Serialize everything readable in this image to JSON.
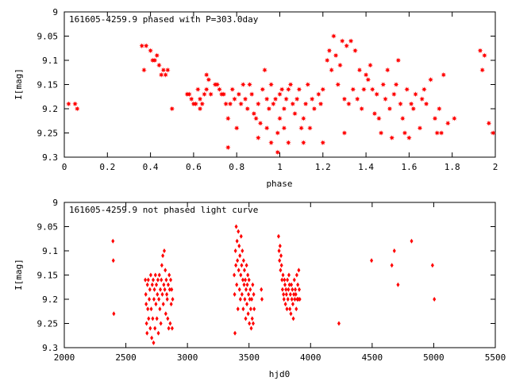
{
  "chart_data": [
    {
      "type": "scatter",
      "title": "161605-4259.9 phased with P=303.0day",
      "xlabel": "phase",
      "ylabel": "I[mag]",
      "xlim": [
        0,
        2
      ],
      "ylim": [
        9.3,
        9
      ],
      "y_axis_inverted": true,
      "grid": false,
      "color": "#ff0000",
      "marker": "filled square/star",
      "x_ticks": [
        "0",
        "0.2",
        "0.4",
        "0.6",
        "0.8",
        "1",
        "1.2",
        "1.4",
        "1.6",
        "1.8",
        "2"
      ],
      "y_ticks": [
        "9",
        "9.05",
        "9.1",
        "9.15",
        "9.2",
        "9.25",
        "9.3"
      ],
      "points": [
        [
          0.02,
          9.19
        ],
        [
          0.05,
          9.19
        ],
        [
          0.06,
          9.2
        ],
        [
          0.36,
          9.07
        ],
        [
          0.37,
          9.12
        ],
        [
          0.38,
          9.07
        ],
        [
          0.4,
          9.08
        ],
        [
          0.41,
          9.1
        ],
        [
          0.42,
          9.1
        ],
        [
          0.43,
          9.09
        ],
        [
          0.44,
          9.11
        ],
        [
          0.45,
          9.13
        ],
        [
          0.46,
          9.12
        ],
        [
          0.47,
          9.13
        ],
        [
          0.48,
          9.12
        ],
        [
          0.5,
          9.2
        ],
        [
          0.57,
          9.17
        ],
        [
          0.58,
          9.17
        ],
        [
          0.59,
          9.18
        ],
        [
          0.6,
          9.19
        ],
        [
          0.61,
          9.19
        ],
        [
          0.62,
          9.16
        ],
        [
          0.63,
          9.18
        ],
        [
          0.63,
          9.2
        ],
        [
          0.64,
          9.19
        ],
        [
          0.65,
          9.17
        ],
        [
          0.66,
          9.13
        ],
        [
          0.66,
          9.16
        ],
        [
          0.67,
          9.14
        ],
        [
          0.68,
          9.17
        ],
        [
          0.7,
          9.15
        ],
        [
          0.71,
          9.15
        ],
        [
          0.72,
          9.16
        ],
        [
          0.73,
          9.17
        ],
        [
          0.74,
          9.17
        ],
        [
          0.75,
          9.19
        ],
        [
          0.76,
          9.22
        ],
        [
          0.76,
          9.28
        ],
        [
          0.77,
          9.19
        ],
        [
          0.78,
          9.16
        ],
        [
          0.79,
          9.18
        ],
        [
          0.8,
          9.24
        ],
        [
          0.81,
          9.17
        ],
        [
          0.82,
          9.19
        ],
        [
          0.83,
          9.15
        ],
        [
          0.84,
          9.18
        ],
        [
          0.85,
          9.2
        ],
        [
          0.86,
          9.15
        ],
        [
          0.87,
          9.17
        ],
        [
          0.88,
          9.21
        ],
        [
          0.89,
          9.22
        ],
        [
          0.9,
          9.19
        ],
        [
          0.9,
          9.26
        ],
        [
          0.91,
          9.23
        ],
        [
          0.92,
          9.16
        ],
        [
          0.93,
          9.12
        ],
        [
          0.94,
          9.18
        ],
        [
          0.94,
          9.24
        ],
        [
          0.95,
          9.2
        ],
        [
          0.96,
          9.15
        ],
        [
          0.96,
          9.27
        ],
        [
          0.97,
          9.19
        ],
        [
          0.98,
          9.18
        ],
        [
          0.99,
          9.25
        ],
        [
          0.99,
          9.29
        ],
        [
          1.0,
          9.17
        ],
        [
          1.0,
          9.22
        ],
        [
          1.01,
          9.16
        ],
        [
          1.02,
          9.2
        ],
        [
          1.02,
          9.24
        ],
        [
          1.03,
          9.18
        ],
        [
          1.04,
          9.16
        ],
        [
          1.04,
          9.27
        ],
        [
          1.05,
          9.15
        ],
        [
          1.06,
          9.19
        ],
        [
          1.07,
          9.21
        ],
        [
          1.08,
          9.18
        ],
        [
          1.09,
          9.16
        ],
        [
          1.1,
          9.24
        ],
        [
          1.11,
          9.22
        ],
        [
          1.11,
          9.27
        ],
        [
          1.12,
          9.19
        ],
        [
          1.13,
          9.15
        ],
        [
          1.14,
          9.24
        ],
        [
          1.15,
          9.18
        ],
        [
          1.16,
          9.2
        ],
        [
          1.18,
          9.17
        ],
        [
          1.19,
          9.19
        ],
        [
          1.2,
          9.16
        ],
        [
          1.2,
          9.27
        ],
        [
          1.22,
          9.1
        ],
        [
          1.23,
          9.08
        ],
        [
          1.24,
          9.12
        ],
        [
          1.25,
          9.05
        ],
        [
          1.26,
          9.09
        ],
        [
          1.27,
          9.15
        ],
        [
          1.28,
          9.11
        ],
        [
          1.29,
          9.06
        ],
        [
          1.3,
          9.25
        ],
        [
          1.3,
          9.18
        ],
        [
          1.31,
          9.07
        ],
        [
          1.32,
          9.19
        ],
        [
          1.33,
          9.06
        ],
        [
          1.34,
          9.16
        ],
        [
          1.35,
          9.08
        ],
        [
          1.36,
          9.18
        ],
        [
          1.37,
          9.12
        ],
        [
          1.38,
          9.2
        ],
        [
          1.39,
          9.16
        ],
        [
          1.4,
          9.13
        ],
        [
          1.41,
          9.14
        ],
        [
          1.42,
          9.11
        ],
        [
          1.43,
          9.16
        ],
        [
          1.44,
          9.21
        ],
        [
          1.45,
          9.17
        ],
        [
          1.46,
          9.22
        ],
        [
          1.47,
          9.25
        ],
        [
          1.48,
          9.15
        ],
        [
          1.49,
          9.18
        ],
        [
          1.5,
          9.12
        ],
        [
          1.51,
          9.2
        ],
        [
          1.52,
          9.26
        ],
        [
          1.53,
          9.17
        ],
        [
          1.54,
          9.15
        ],
        [
          1.55,
          9.1
        ],
        [
          1.56,
          9.19
        ],
        [
          1.57,
          9.22
        ],
        [
          1.58,
          9.25
        ],
        [
          1.59,
          9.16
        ],
        [
          1.6,
          9.26
        ],
        [
          1.61,
          9.19
        ],
        [
          1.62,
          9.2
        ],
        [
          1.63,
          9.17
        ],
        [
          1.65,
          9.24
        ],
        [
          1.66,
          9.18
        ],
        [
          1.67,
          9.16
        ],
        [
          1.68,
          9.19
        ],
        [
          1.7,
          9.14
        ],
        [
          1.72,
          9.22
        ],
        [
          1.73,
          9.25
        ],
        [
          1.74,
          9.2
        ],
        [
          1.75,
          9.25
        ],
        [
          1.76,
          9.13
        ],
        [
          1.78,
          9.23
        ],
        [
          1.81,
          9.22
        ],
        [
          1.93,
          9.08
        ],
        [
          1.94,
          9.12
        ],
        [
          1.95,
          9.09
        ],
        [
          1.97,
          9.23
        ],
        [
          1.99,
          9.25
        ]
      ]
    },
    {
      "type": "scatter",
      "title": "161605-4259.9 not phased light curve",
      "xlabel": "hjd0",
      "ylabel": "I[mag]",
      "xlim": [
        2000,
        5500
      ],
      "ylim": [
        9.3,
        9
      ],
      "y_axis_inverted": true,
      "grid": false,
      "color": "#ff0000",
      "marker": "filled diamond",
      "x_ticks": [
        "2000",
        "2500",
        "3000",
        "3500",
        "4000",
        "4500",
        "5000",
        "5500"
      ],
      "y_ticks": [
        "9",
        "9.05",
        "9.1",
        "9.15",
        "9.2",
        "9.25",
        "9.3"
      ],
      "points": [
        [
          2395,
          9.08
        ],
        [
          2398,
          9.12
        ],
        [
          2402,
          9.23
        ],
        [
          2658,
          9.16
        ],
        [
          2662,
          9.19
        ],
        [
          2665,
          9.21
        ],
        [
          2668,
          9.25
        ],
        [
          2672,
          9.27
        ],
        [
          2675,
          9.17
        ],
        [
          2678,
          9.22
        ],
        [
          2682,
          9.16
        ],
        [
          2685,
          9.24
        ],
        [
          2690,
          9.2
        ],
        [
          2695,
          9.18
        ],
        [
          2698,
          9.26
        ],
        [
          2702,
          9.15
        ],
        [
          2706,
          9.22
        ],
        [
          2710,
          9.28
        ],
        [
          2714,
          9.17
        ],
        [
          2718,
          9.24
        ],
        [
          2722,
          9.16
        ],
        [
          2725,
          9.29
        ],
        [
          2728,
          9.2
        ],
        [
          2732,
          9.18
        ],
        [
          2736,
          9.26
        ],
        [
          2740,
          9.15
        ],
        [
          2744,
          9.21
        ],
        [
          2748,
          9.17
        ],
        [
          2752,
          9.24
        ],
        [
          2756,
          9.19
        ],
        [
          2760,
          9.16
        ],
        [
          2764,
          9.27
        ],
        [
          2768,
          9.2
        ],
        [
          2772,
          9.15
        ],
        [
          2776,
          9.22
        ],
        [
          2780,
          9.18
        ],
        [
          2784,
          9.25
        ],
        [
          2788,
          9.16
        ],
        [
          2792,
          9.13
        ],
        [
          2796,
          9.19
        ],
        [
          2800,
          9.11
        ],
        [
          2804,
          9.21
        ],
        [
          2808,
          9.17
        ],
        [
          2812,
          9.1
        ],
        [
          2816,
          9.18
        ],
        [
          2820,
          9.14
        ],
        [
          2824,
          9.23
        ],
        [
          2828,
          9.16
        ],
        [
          2832,
          9.19
        ],
        [
          2836,
          9.2
        ],
        [
          2840,
          9.24
        ],
        [
          2844,
          9.17
        ],
        [
          2848,
          9.26
        ],
        [
          2852,
          9.15
        ],
        [
          2856,
          9.18
        ],
        [
          2860,
          9.25
        ],
        [
          2864,
          9.16
        ],
        [
          2868,
          9.21
        ],
        [
          2872,
          9.18
        ],
        [
          2876,
          9.26
        ],
        [
          2880,
          9.2
        ],
        [
          3380,
          9.15
        ],
        [
          3383,
          9.19
        ],
        [
          3386,
          9.27
        ],
        [
          3390,
          9.1
        ],
        [
          3393,
          9.13
        ],
        [
          3396,
          9.05
        ],
        [
          3400,
          9.17
        ],
        [
          3403,
          9.08
        ],
        [
          3406,
          9.12
        ],
        [
          3410,
          9.22
        ],
        [
          3413,
          9.06
        ],
        [
          3416,
          9.14
        ],
        [
          3420,
          9.09
        ],
        [
          3423,
          9.18
        ],
        [
          3426,
          9.11
        ],
        [
          3430,
          9.2
        ],
        [
          3433,
          9.15
        ],
        [
          3436,
          9.07
        ],
        [
          3440,
          9.13
        ],
        [
          3443,
          9.19
        ],
        [
          3446,
          9.1
        ],
        [
          3450,
          9.16
        ],
        [
          3453,
          9.22
        ],
        [
          3456,
          9.12
        ],
        [
          3460,
          9.17
        ],
        [
          3463,
          9.14
        ],
        [
          3466,
          9.2
        ],
        [
          3470,
          9.16
        ],
        [
          3473,
          9.24
        ],
        [
          3476,
          9.18
        ],
        [
          3480,
          9.13
        ],
        [
          3483,
          9.21
        ],
        [
          3486,
          9.17
        ],
        [
          3490,
          9.15
        ],
        [
          3493,
          9.23
        ],
        [
          3496,
          9.19
        ],
        [
          3500,
          9.16
        ],
        [
          3503,
          9.25
        ],
        [
          3506,
          9.2
        ],
        [
          3510,
          9.18
        ],
        [
          3514,
          9.22
        ],
        [
          3518,
          9.26
        ],
        [
          3522,
          9.2
        ],
        [
          3526,
          9.24
        ],
        [
          3530,
          9.17
        ],
        [
          3534,
          9.25
        ],
        [
          3538,
          9.19
        ],
        [
          3542,
          9.22
        ],
        [
          3600,
          9.18
        ],
        [
          3605,
          9.2
        ],
        [
          3740,
          9.07
        ],
        [
          3744,
          9.1
        ],
        [
          3748,
          9.12
        ],
        [
          3752,
          9.09
        ],
        [
          3756,
          9.14
        ],
        [
          3760,
          9.11
        ],
        [
          3764,
          9.13
        ],
        [
          3768,
          9.16
        ],
        [
          3772,
          9.18
        ],
        [
          3776,
          9.15
        ],
        [
          3780,
          9.19
        ],
        [
          3784,
          9.2
        ],
        [
          3788,
          9.16
        ],
        [
          3792,
          9.17
        ],
        [
          3796,
          9.21
        ],
        [
          3800,
          9.18
        ],
        [
          3804,
          9.19
        ],
        [
          3808,
          9.22
        ],
        [
          3812,
          9.16
        ],
        [
          3816,
          9.2
        ],
        [
          3820,
          9.18
        ],
        [
          3824,
          9.15
        ],
        [
          3828,
          9.17
        ],
        [
          3832,
          9.22
        ],
        [
          3836,
          9.19
        ],
        [
          3840,
          9.23
        ],
        [
          3844,
          9.17
        ],
        [
          3848,
          9.2
        ],
        [
          3852,
          9.18
        ],
        [
          3856,
          9.21
        ],
        [
          3860,
          9.24
        ],
        [
          3864,
          9.19
        ],
        [
          3868,
          9.16
        ],
        [
          3872,
          9.2
        ],
        [
          3876,
          9.18
        ],
        [
          3880,
          9.19
        ],
        [
          3884,
          9.22
        ],
        [
          3888,
          9.15
        ],
        [
          3892,
          9.2
        ],
        [
          3896,
          9.17
        ],
        [
          3900,
          9.2
        ],
        [
          3904,
          9.14
        ],
        [
          3908,
          9.18
        ],
        [
          3912,
          9.2
        ],
        [
          4230,
          9.25
        ],
        [
          4495,
          9.12
        ],
        [
          4660,
          9.13
        ],
        [
          4680,
          9.1
        ],
        [
          4710,
          9.17
        ],
        [
          4820,
          9.08
        ],
        [
          4990,
          9.13
        ],
        [
          5005,
          9.2
        ]
      ]
    }
  ]
}
